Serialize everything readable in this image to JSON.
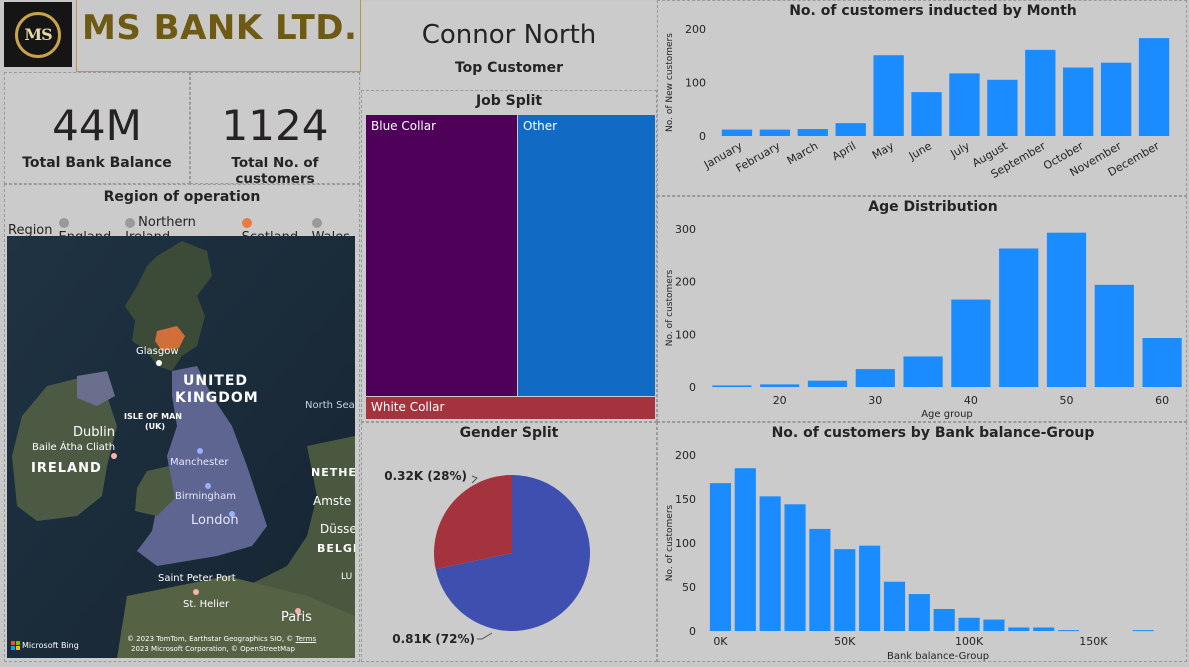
{
  "brand": {
    "logo_text": "MS",
    "name": "MS BANK LTD."
  },
  "kpis": [
    {
      "value": "44M",
      "label": "Total Bank Balance"
    },
    {
      "value": "1124",
      "label": "Total No. of customers"
    }
  ],
  "top_customer": {
    "name": "Connor North",
    "label": "Top Customer"
  },
  "region": {
    "title": "Region of operation",
    "legend_label": "Region",
    "legend": [
      {
        "name": "England",
        "color": "#9a9a9a"
      },
      {
        "name": "Northern Ireland",
        "color": "#9a9a9a"
      },
      {
        "name": "Scotland",
        "color": "#e97a43"
      },
      {
        "name": "Wales",
        "color": "#9a9a9a"
      }
    ],
    "map_labels": {
      "glasgow": "Glasgow",
      "uk": "UNITED",
      "uk2": "KINGDOM",
      "isle_of_man": "ISLE OF MAN",
      "isle_of_man2": "(UK)",
      "north_sea": "North Sea",
      "dublin": "Dublin",
      "baile": "Baile Átha Cliath",
      "ireland": "IRELAND",
      "manchester": "Manchester",
      "birmingham": "Birmingham",
      "london": "London",
      "netherlands": "NETHE",
      "amsterdam": "Amste",
      "dusseldorf": "Düsse",
      "belgium": "BELGI",
      "lux": "LU",
      "saint_peter_port": "Saint Peter Port",
      "st_helier": "St. Helier",
      "paris": "Paris",
      "bing": "Microsoft Bing",
      "copyright1": "© 2023 TomTom, Earthstar Geographics SIO, ©",
      "terms": "Terms",
      "copyright2": "2023 Microsoft Corporation, © OpenStreetMap"
    }
  },
  "job_split": {
    "title": "Job Split",
    "segments": [
      {
        "name": "Blue Collar",
        "color": "#4f0058"
      },
      {
        "name": "Other",
        "color": "#116bc4"
      },
      {
        "name": "White Collar",
        "color": "#a4333e"
      }
    ]
  },
  "gender_split": {
    "title": "Gender Split",
    "labels": [
      "0.32K (28%)",
      "0.81K (72%)"
    ]
  },
  "chart_data": [
    {
      "type": "bar",
      "title": "No. of customers inducted by Month",
      "xlabel": "",
      "ylabel": "No. of New customers",
      "categories": [
        "January",
        "February",
        "March",
        "April",
        "May",
        "June",
        "July",
        "August",
        "September",
        "October",
        "November",
        "December"
      ],
      "values": [
        12,
        12,
        13,
        24,
        151,
        82,
        117,
        105,
        161,
        128,
        137,
        183
      ],
      "ylim": [
        0,
        200
      ],
      "yticks": [
        0,
        100,
        200
      ],
      "color": "#1a8cff"
    },
    {
      "type": "bar",
      "title": "Age Distribution",
      "xlabel": "Age group",
      "ylabel": "No. of customers",
      "x": [
        15,
        20,
        25,
        30,
        35,
        40,
        45,
        50,
        55,
        60
      ],
      "values": [
        3,
        5,
        12,
        34,
        58,
        166,
        263,
        293,
        194,
        93
      ],
      "xticks": [
        20,
        30,
        40,
        50,
        60
      ],
      "ylim": [
        0,
        300
      ],
      "yticks": [
        0,
        100,
        200,
        300
      ],
      "color": "#1a8cff"
    },
    {
      "type": "bar",
      "title": "No. of customers by Bank balance-Group",
      "xlabel": "Bank balance-Group",
      "ylabel": "No. of customers",
      "x": [
        0,
        10000,
        20000,
        30000,
        40000,
        50000,
        60000,
        70000,
        80000,
        90000,
        100000,
        110000,
        120000,
        130000,
        140000,
        170000
      ],
      "values": [
        168,
        185,
        153,
        144,
        116,
        93,
        97,
        56,
        42,
        25,
        15,
        13,
        4,
        4,
        1,
        1
      ],
      "xticks": [
        "0K",
        "50K",
        "100K",
        "150K"
      ],
      "ylim": [
        0,
        200
      ],
      "yticks": [
        0,
        50,
        100,
        150,
        200
      ],
      "color": "#1a8cff"
    },
    {
      "type": "pie",
      "title": "Gender Split",
      "slices": [
        {
          "value": 0.32,
          "label": "0.32K (28%)",
          "color": "#a4333e"
        },
        {
          "value": 0.81,
          "label": "0.81K (72%)",
          "color": "#3f4fb0"
        }
      ]
    }
  ]
}
